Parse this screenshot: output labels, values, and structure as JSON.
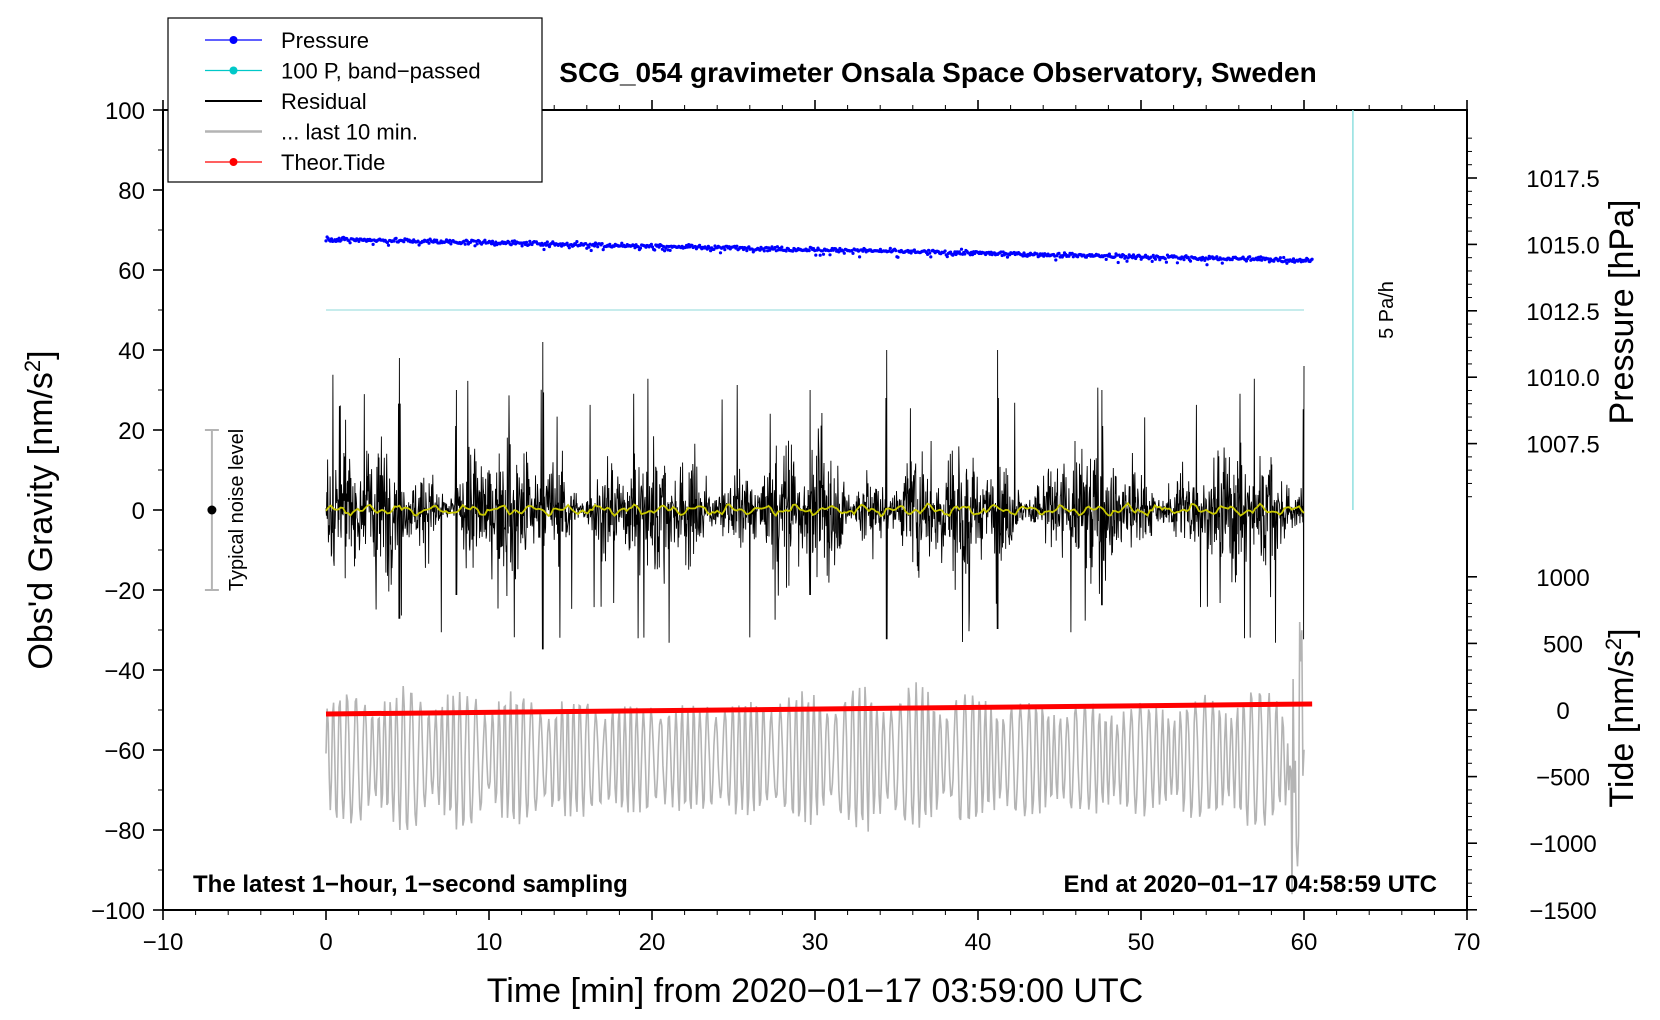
{
  "chart_data": {
    "type": "line",
    "title": "SCG_054 gravimeter Onsala Space Observatory, Sweden",
    "xlabel": "Time [min] from 2020−01−17 03:59:00 UTC",
    "ylabel_left": "Obs'd Gravity [nm/s",
    "ylabel_left_sup": "2",
    "ylabel_left_tail": "]",
    "ylabel_pressure": "Pressure [hPa]",
    "ylabel_tide": "Tide [nm/s",
    "ylabel_tide_sup": "2",
    "ylabel_tide_tail": "]",
    "xlim": [
      -10,
      70
    ],
    "ylim": [
      -100,
      100
    ],
    "xticks": [
      -10,
      0,
      10,
      20,
      30,
      40,
      50,
      60,
      70
    ],
    "xtick_labels": [
      "−10",
      "0",
      "10",
      "20",
      "30",
      "40",
      "50",
      "60",
      "70"
    ],
    "yticks": [
      -100,
      -80,
      -60,
      -40,
      -20,
      0,
      20,
      40,
      60,
      80,
      100
    ],
    "ytick_labels": [
      "−100",
      "−80",
      "−60",
      "−40",
      "−20",
      "0",
      "20",
      "40",
      "60",
      "80",
      "100"
    ],
    "pressure_axis": {
      "ticks": [
        1007.5,
        1010.0,
        1012.5,
        1015.0,
        1017.5
      ],
      "labels": [
        "1007.5",
        "1010.0",
        "1012.5",
        "1015.0",
        "1017.5"
      ],
      "map": {
        "value_a": 1015.0,
        "left_y_a": 66.4,
        "value_b": 1007.5,
        "left_y_b": 16.6
      }
    },
    "tide_axis": {
      "ticks": [
        -1500,
        -1000,
        -500,
        0,
        500,
        1000
      ],
      "labels": [
        "−1500",
        "−1000",
        "−500",
        "0",
        "500",
        "1000"
      ],
      "map": {
        "value_a": 0,
        "left_y_a": -50,
        "value_b": 1000,
        "left_y_b": -16.7
      }
    },
    "legend": {
      "placement": "top-left",
      "entries": [
        {
          "label": "Pressure",
          "color": "#0000ff",
          "marker": true
        },
        {
          "label": "100 P, band−passed",
          "color": "#00c8c8",
          "marker": true
        },
        {
          "label": "Residual",
          "color": "#000000",
          "marker": false
        },
        {
          "label": "... last 10 min.",
          "color": "#b4b4b4",
          "marker": false
        },
        {
          "label": "Theor.Tide",
          "color": "#ff0000",
          "marker": true
        }
      ]
    },
    "annotations": {
      "bottom_left": "The latest 1−hour, 1−second sampling",
      "bottom_right": "End at 2020−01−17 04:58:59 UTC",
      "noise_label": "Typical noise level",
      "rate_label": "5 Pa/h"
    },
    "noise_bar": {
      "x": -7,
      "center": 0,
      "low": -20,
      "high": 20
    },
    "rate_bar": {
      "x": 63,
      "from": 0,
      "to": 100
    },
    "series": [
      {
        "name": "Pressure",
        "color": "#0000ff",
        "x_range": [
          0,
          60.5
        ],
        "start_hPa": 1015.2,
        "end_hPa": 1014.4,
        "scatter_hPa": 0.15
      },
      {
        "name": "100 P, band-passed",
        "color": "#b4e6e6",
        "x_range": [
          0,
          60
        ],
        "value": 50
      },
      {
        "name": "Residual",
        "color": "#000000",
        "x_range": [
          0,
          60
        ],
        "typical_amplitude": 20,
        "peak_max": 42,
        "peak_min": -41
      },
      {
        "name": "Residual smoothed",
        "color": "#c8c800",
        "x_range": [
          0,
          60
        ],
        "value": 0
      },
      {
        "name": "... last 10 min.",
        "color": "#b4b4b4",
        "x_range": [
          0,
          60
        ],
        "center": -62,
        "amplitude": 18
      },
      {
        "name": "Theor.Tide",
        "color": "#ff0000",
        "x_range": [
          0,
          60.5
        ],
        "start": -51,
        "end": -48.5
      }
    ]
  }
}
